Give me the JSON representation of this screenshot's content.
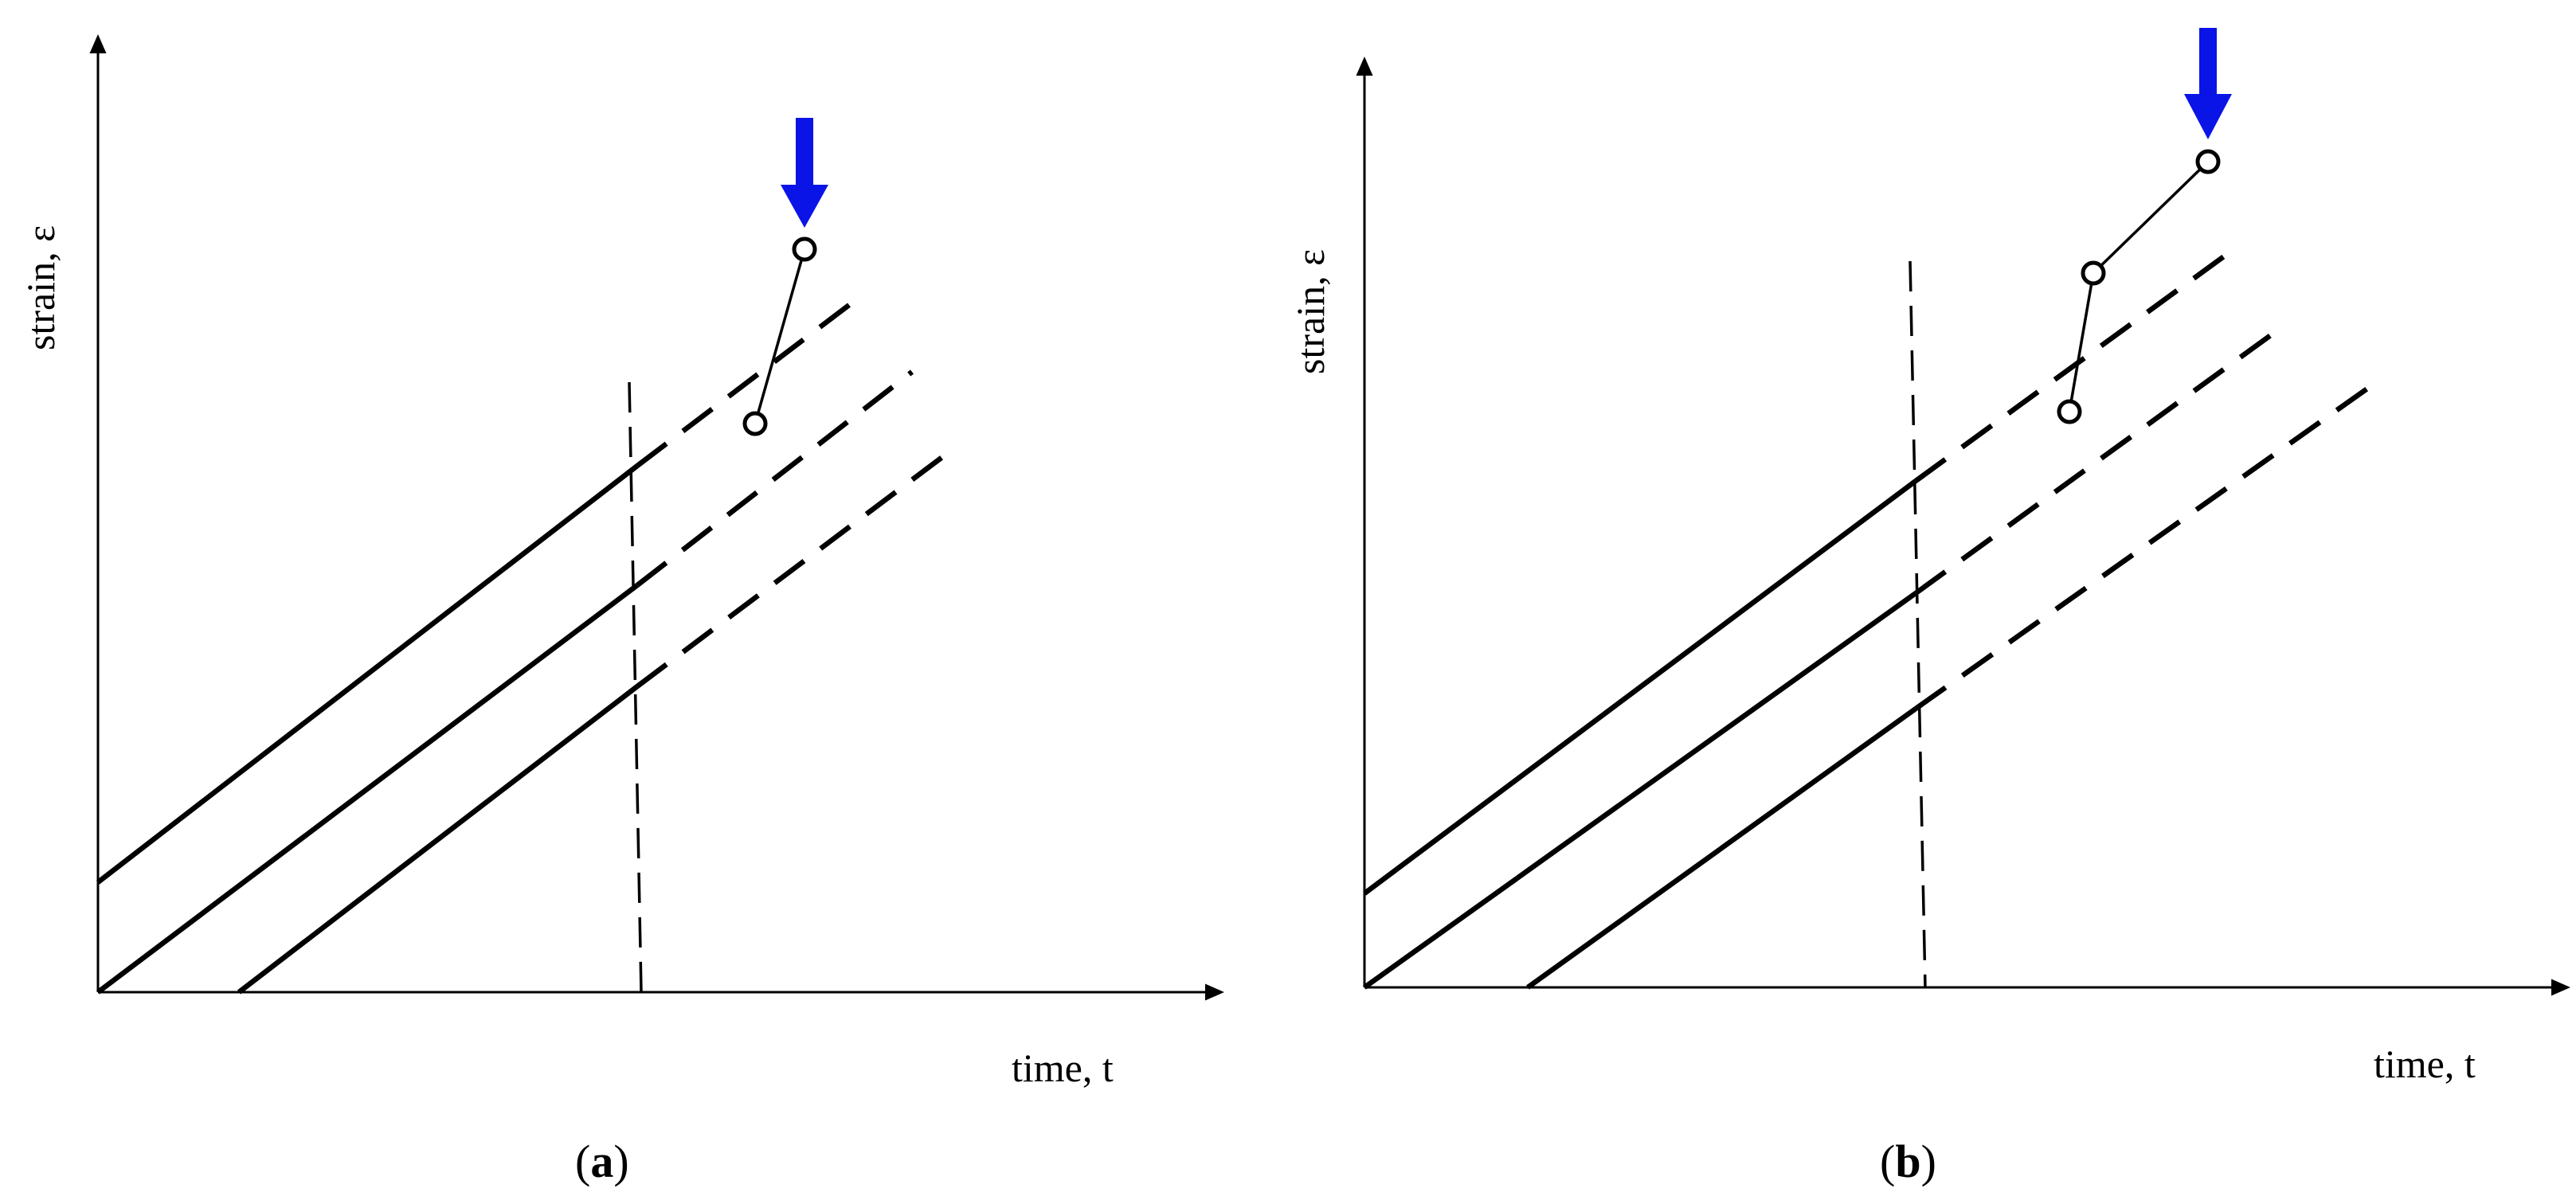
{
  "panels": [
    {
      "label_open": "(",
      "label_letter": "a",
      "label_close": ")",
      "x_axis_label": "time, t",
      "y_axis_label": "strain, ε"
    },
    {
      "label_open": "(",
      "label_letter": "b",
      "label_close": ")",
      "x_axis_label": "time, t",
      "y_axis_label": "strain, ε"
    }
  ],
  "colors": {
    "lines": "#000000",
    "arrow": "#0a14e6",
    "background": "#ffffff"
  },
  "icons": {
    "indicator": "down-arrow-icon",
    "data_point": "open-circle-marker"
  }
}
